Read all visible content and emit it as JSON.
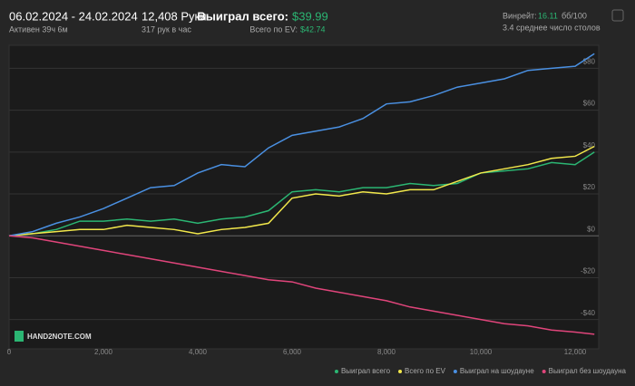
{
  "header": {
    "dates": "06.02.2024 - 24.02.2024",
    "active": "Активен 39ч 6м",
    "hands": "12,408 Руки",
    "hands_per_hour": "317 рук в час",
    "won_label": "Выиграл всего:",
    "won_value": "$39.99",
    "ev_label": "Всего по EV:",
    "ev_value": "$42.74",
    "winrate_label": "Винрейт:",
    "winrate_value": "16.11",
    "winrate_unit": "бб/100",
    "tables": "3.4 среднее число столов",
    "logo": "HAND2NOTE.COM"
  },
  "chart_data": {
    "type": "line",
    "x": [
      0,
      500,
      1000,
      1500,
      2000,
      2500,
      3000,
      3500,
      4000,
      4500,
      5000,
      5500,
      6000,
      6500,
      7000,
      7500,
      8000,
      8500,
      9000,
      9500,
      10000,
      10500,
      11000,
      11500,
      12000,
      12408
    ],
    "series": [
      {
        "name": "Выиграл всего",
        "color": "#2bb673",
        "values": [
          0,
          1,
          3,
          7,
          7,
          8,
          7,
          8,
          6,
          8,
          9,
          12,
          21,
          22,
          21,
          23,
          23,
          25,
          24,
          25,
          30,
          31,
          32,
          35,
          34,
          39.99
        ]
      },
      {
        "name": "Всего по EV",
        "color": "#f2e84b",
        "values": [
          0,
          1,
          2,
          3,
          3,
          5,
          4,
          3,
          1,
          3,
          4,
          6,
          18,
          20,
          19,
          21,
          20,
          22,
          22,
          26,
          30,
          32,
          34,
          37,
          38,
          42.74
        ]
      },
      {
        "name": "Выиграл на шоудауне",
        "color": "#4a90e2",
        "values": [
          0,
          2,
          6,
          9,
          13,
          18,
          23,
          24,
          30,
          34,
          33,
          42,
          48,
          50,
          52,
          56,
          63,
          64,
          67,
          71,
          73,
          75,
          79,
          80,
          81,
          87
        ]
      },
      {
        "name": "Выиграл без шоудауна",
        "color": "#e0457b",
        "values": [
          0,
          -1,
          -3,
          -5,
          -7,
          -9,
          -11,
          -13,
          -15,
          -17,
          -19,
          -21,
          -22,
          -25,
          -27,
          -29,
          -31,
          -34,
          -36,
          -38,
          -40,
          -42,
          -43,
          -45,
          -46,
          -47
        ]
      }
    ],
    "xlim": [
      0,
      12500
    ],
    "ylim": [
      -54,
      91
    ],
    "xticks": [
      0,
      {
        "value": 2000,
        "label": "2,000"
      },
      {
        "value": 4000,
        "label": "4,000"
      },
      {
        "value": 6000,
        "label": "6,000"
      },
      {
        "value": 8000,
        "label": "8,000"
      },
      {
        "value": 10000,
        "label": "10,000"
      },
      {
        "value": 12000,
        "label": "12,000"
      }
    ],
    "yticks": [
      {
        "value": -40,
        "label": "-$40"
      },
      {
        "value": -20,
        "label": "-$20"
      },
      {
        "value": 0,
        "label": "$0"
      },
      {
        "value": 20,
        "label": "$20"
      },
      {
        "value": 40,
        "label": "$40"
      },
      {
        "value": 60,
        "label": "$60"
      },
      {
        "value": 80,
        "label": "$80"
      }
    ],
    "grid": true,
    "legend": "bottom-right"
  }
}
